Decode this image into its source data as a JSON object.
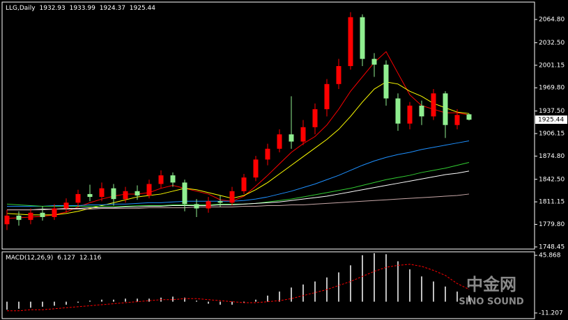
{
  "chart_data": [
    {
      "type": "candlestick",
      "title": "LLG,Daily",
      "up_color": "#ff0000",
      "down_color": "#90ee90",
      "open": [
        1780,
        1792,
        1786,
        1796,
        1790,
        1802,
        1810,
        1822,
        1818,
        1830,
        1815,
        1826,
        1820,
        1836,
        1848,
        1838,
        1808,
        1802,
        1812,
        1810,
        1826,
        1845,
        1870,
        1885,
        1905,
        1895,
        1915,
        1940,
        1975,
        2000,
        2068,
        2010,
        2002,
        1955,
        1920,
        1945,
        1930,
        1962,
        1918,
        1932.93
      ],
      "high": [
        1800,
        1798,
        1802,
        1805,
        1808,
        1816,
        1828,
        1835,
        1838,
        1836,
        1832,
        1834,
        1842,
        1855,
        1852,
        1842,
        1815,
        1818,
        1820,
        1832,
        1850,
        1875,
        1892,
        1912,
        1958,
        1925,
        1948,
        1982,
        2010,
        2075,
        2072,
        2018,
        2008,
        1962,
        1950,
        1952,
        1968,
        1965,
        1940,
        1933.99
      ],
      "low": [
        1772,
        1778,
        1780,
        1785,
        1786,
        1796,
        1805,
        1812,
        1812,
        1806,
        1810,
        1814,
        1816,
        1830,
        1832,
        1798,
        1790,
        1796,
        1804,
        1806,
        1822,
        1840,
        1862,
        1880,
        1885,
        1890,
        1905,
        1930,
        1968,
        1995,
        2000,
        1985,
        1945,
        1910,
        1912,
        1918,
        1925,
        1900,
        1912,
        1924.37
      ],
      "close": [
        1792,
        1786,
        1796,
        1790,
        1802,
        1810,
        1822,
        1818,
        1830,
        1815,
        1826,
        1820,
        1836,
        1848,
        1838,
        1808,
        1802,
        1812,
        1810,
        1826,
        1845,
        1870,
        1885,
        1905,
        1895,
        1915,
        1940,
        1975,
        2000,
        2068,
        2010,
        2002,
        1955,
        1920,
        1945,
        1930,
        1962,
        1918,
        1932,
        1925.44
      ],
      "series": [
        {
          "color": "#ff0000",
          "values": [
            1788,
            1789,
            1790,
            1791,
            1793,
            1797,
            1804,
            1810,
            1815,
            1819,
            1822,
            1822,
            1824,
            1830,
            1834,
            1830,
            1826,
            1822,
            1814,
            1812,
            1819,
            1833,
            1848,
            1864,
            1880,
            1892,
            1902,
            1918,
            1940,
            1965,
            1985,
            2005,
            2020,
            1990,
            1960,
            1945,
            1940,
            1935,
            1935,
            1932
          ]
        },
        {
          "color": "#ffff00",
          "values": [
            1795,
            1794,
            1793,
            1793,
            1793,
            1795,
            1798,
            1802,
            1806,
            1810,
            1814,
            1818,
            1820,
            1822,
            1826,
            1830,
            1828,
            1824,
            1820,
            1816,
            1820,
            1828,
            1838,
            1850,
            1862,
            1874,
            1886,
            1898,
            1912,
            1930,
            1950,
            1968,
            1978,
            1975,
            1965,
            1958,
            1948,
            1942,
            1936,
            1934
          ]
        },
        {
          "color": "#1e90ff",
          "values": [
            1805,
            1805,
            1805,
            1805,
            1806,
            1806,
            1806,
            1807,
            1807,
            1808,
            1808,
            1809,
            1810,
            1810,
            1811,
            1812,
            1812,
            1812,
            1812,
            1812,
            1813,
            1815,
            1818,
            1822,
            1826,
            1831,
            1836,
            1842,
            1848,
            1855,
            1862,
            1868,
            1873,
            1877,
            1880,
            1884,
            1887,
            1890,
            1893,
            1896
          ]
        },
        {
          "color": "#32cd32",
          "values": [
            1808,
            1807,
            1806,
            1805,
            1805,
            1805,
            1805,
            1805,
            1805,
            1805,
            1805,
            1806,
            1806,
            1806,
            1807,
            1807,
            1807,
            1807,
            1808,
            1808,
            1808,
            1809,
            1811,
            1813,
            1815,
            1818,
            1821,
            1824,
            1827,
            1830,
            1834,
            1838,
            1842,
            1845,
            1848,
            1852,
            1855,
            1858,
            1862,
            1866
          ]
        },
        {
          "color": "#ffffff",
          "values": [
            1800,
            1800,
            1800,
            1801,
            1801,
            1802,
            1802,
            1803,
            1803,
            1803,
            1804,
            1804,
            1805,
            1805,
            1806,
            1806,
            1806,
            1806,
            1807,
            1807,
            1808,
            1809,
            1810,
            1811,
            1813,
            1815,
            1817,
            1819,
            1822,
            1825,
            1828,
            1831,
            1834,
            1837,
            1840,
            1843,
            1846,
            1849,
            1851,
            1854
          ]
        },
        {
          "color": "#c8a8a8",
          "values": [
            1800,
            1800,
            1800,
            1800,
            1801,
            1801,
            1801,
            1801,
            1802,
            1802,
            1802,
            1802,
            1803,
            1803,
            1803,
            1803,
            1804,
            1804,
            1804,
            1804,
            1805,
            1805,
            1806,
            1806,
            1807,
            1807,
            1808,
            1809,
            1810,
            1811,
            1812,
            1813,
            1814,
            1815,
            1816,
            1817,
            1818,
            1819,
            1820,
            1822
          ]
        }
      ],
      "ylim": [
        1745.5,
        2089.0
      ],
      "yticks": [
        1748.45,
        {
          "value": 1779.8,
          "label": "1779.80"
        },
        1811.15,
        {
          "value": 1842.5,
          "label": "1842.50"
        },
        {
          "value": 1874.8,
          "label": "1874.80"
        },
        1906.15,
        {
          "value": 1937.5,
          "label": "1937.50"
        },
        {
          "value": 1969.8,
          "label": "1969.80"
        },
        2001.15,
        {
          "value": 2032.5,
          "label": "2032.50"
        },
        {
          "value": 2064.8,
          "label": "2064.80"
        }
      ],
      "watermark": [
        "中金网",
        "SINO SOUND"
      ]
    },
    {
      "type": "macd",
      "title": "MACD(12,26,9)",
      "histogram": {
        "color": "#ffffff",
        "values": [
          -8,
          -7,
          -6,
          -5,
          -4,
          -3,
          -1,
          1,
          2,
          2,
          3,
          3,
          3,
          4,
          5,
          4,
          1,
          -2,
          -3,
          -3,
          -1,
          2,
          6,
          10,
          14,
          17,
          20,
          24,
          29,
          36,
          46,
          48,
          47,
          40,
          32,
          25,
          20,
          15,
          10,
          6.127
        ]
      },
      "signal": {
        "color": "#ff0000",
        "values": [
          -9,
          -9,
          -8,
          -8,
          -7,
          -6,
          -5,
          -4,
          -3,
          -2,
          -1,
          0,
          1,
          2,
          2,
          3,
          3,
          2,
          1,
          0,
          -1,
          -1,
          0,
          1,
          3,
          6,
          9,
          12,
          16,
          20,
          25,
          30,
          34,
          36,
          37,
          35,
          31,
          26,
          18,
          12.116
        ]
      },
      "ylim": [
        -16.77,
        49.35
      ],
      "yticks": [
        -11.207,
        45.868
      ]
    }
  ]
}
